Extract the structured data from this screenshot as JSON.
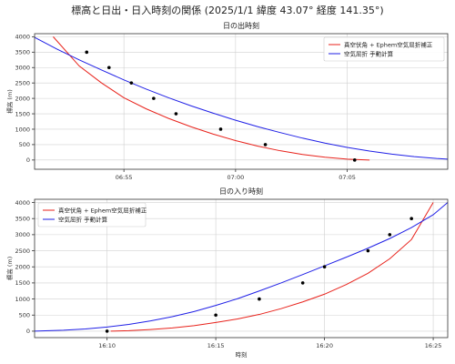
{
  "figure": {
    "title": "標高と日出・日入時刻の関係 (2025/1/1 緯度 43.07° 経度 141.35°)"
  },
  "colors": {
    "red": "#e8221b",
    "blue": "#1f1fe6",
    "points": "#000000"
  },
  "chart_data": [
    {
      "type": "line",
      "title": "日の出時刻",
      "xlabel": "",
      "ylabel": "標高 (m)",
      "xlim": [
        "06:51:00",
        "07:09:30"
      ],
      "ylim": [
        -300,
        4100
      ],
      "x_ticks": [
        "06:55",
        "07:00",
        "07:05"
      ],
      "y_ticks": [
        0,
        500,
        1000,
        1500,
        2000,
        2500,
        3000,
        3500,
        4000
      ],
      "grid": true,
      "legend": "top-right",
      "series": [
        {
          "name": "真空伏角 + Ephem空気屈折補正",
          "color": "red",
          "kind": "line",
          "x": [
            "06:51:50",
            "06:53:00",
            "06:54:00",
            "06:55:00",
            "06:56:00",
            "06:57:00",
            "06:58:00",
            "06:59:00",
            "07:00:00",
            "07:01:00",
            "07:02:00",
            "07:03:00",
            "07:04:00",
            "07:05:00",
            "07:06:00"
          ],
          "y": [
            4000,
            3050,
            2500,
            2020,
            1660,
            1350,
            1080,
            840,
            630,
            450,
            300,
            180,
            90,
            30,
            0
          ]
        },
        {
          "name": "空気屈折 手動計算",
          "color": "blue",
          "kind": "line",
          "x": [
            "06:51:00",
            "06:52:00",
            "06:53:00",
            "06:54:00",
            "06:55:00",
            "06:56:00",
            "06:57:00",
            "06:58:00",
            "06:59:00",
            "07:00:00",
            "07:01:00",
            "07:02:00",
            "07:03:00",
            "07:04:00",
            "07:05:00",
            "07:06:00",
            "07:07:00",
            "07:08:00",
            "07:09:00",
            "07:09:30"
          ],
          "y": [
            3980,
            3600,
            3250,
            2920,
            2600,
            2300,
            2020,
            1760,
            1520,
            1290,
            1080,
            890,
            710,
            550,
            410,
            290,
            190,
            110,
            50,
            30
          ]
        },
        {
          "name": "",
          "color": "points",
          "kind": "scatter",
          "x": [
            "06:53:20",
            "06:54:20",
            "06:55:20",
            "06:56:20",
            "06:57:20",
            "06:59:20",
            "07:01:20",
            "07:05:20"
          ],
          "y": [
            3500,
            3000,
            2500,
            2000,
            1500,
            1000,
            500,
            0
          ]
        }
      ]
    },
    {
      "type": "line",
      "title": "日の入り時刻",
      "xlabel": "時刻",
      "ylabel": "標高 (m)",
      "xlim": [
        "16:06:40",
        "16:25:40"
      ],
      "ylim": [
        -200,
        4100
      ],
      "x_ticks": [
        "16:10",
        "16:15",
        "16:20",
        "16:25"
      ],
      "y_ticks": [
        0,
        500,
        1000,
        1500,
        2000,
        2500,
        3000,
        3500,
        4000
      ],
      "grid": true,
      "legend": "top-left",
      "series": [
        {
          "name": "真空伏角 + Ephem空気屈折補正",
          "color": "red",
          "kind": "line",
          "x": [
            "16:10:10",
            "16:11:00",
            "16:12:00",
            "16:13:00",
            "16:14:00",
            "16:15:00",
            "16:16:00",
            "16:17:00",
            "16:18:00",
            "16:19:00",
            "16:20:00",
            "16:21:00",
            "16:22:00",
            "16:23:00",
            "16:24:00",
            "16:25:00"
          ],
          "y": [
            0,
            15,
            50,
            100,
            170,
            270,
            380,
            520,
            700,
            910,
            1150,
            1450,
            1800,
            2250,
            2850,
            4000
          ]
        },
        {
          "name": "空気屈折 手動計算",
          "color": "blue",
          "kind": "line",
          "x": [
            "16:06:40",
            "16:08:00",
            "16:09:00",
            "16:10:00",
            "16:11:00",
            "16:12:00",
            "16:13:00",
            "16:14:00",
            "16:15:00",
            "16:16:00",
            "16:17:00",
            "16:18:00",
            "16:19:00",
            "16:20:00",
            "16:21:00",
            "16:22:00",
            "16:23:00",
            "16:24:00",
            "16:25:00",
            "16:25:40"
          ],
          "y": [
            0,
            30,
            70,
            130,
            210,
            320,
            450,
            610,
            800,
            1010,
            1250,
            1500,
            1760,
            2030,
            2300,
            2580,
            2880,
            3220,
            3620,
            4000
          ]
        },
        {
          "name": "",
          "color": "points",
          "kind": "scatter",
          "x": [
            "16:10:00",
            "16:15:00",
            "16:17:00",
            "16:19:00",
            "16:20:00",
            "16:22:00",
            "16:23:00",
            "16:24:00"
          ],
          "y": [
            0,
            500,
            1000,
            1500,
            2000,
            2500,
            3000,
            3500
          ]
        }
      ]
    }
  ]
}
